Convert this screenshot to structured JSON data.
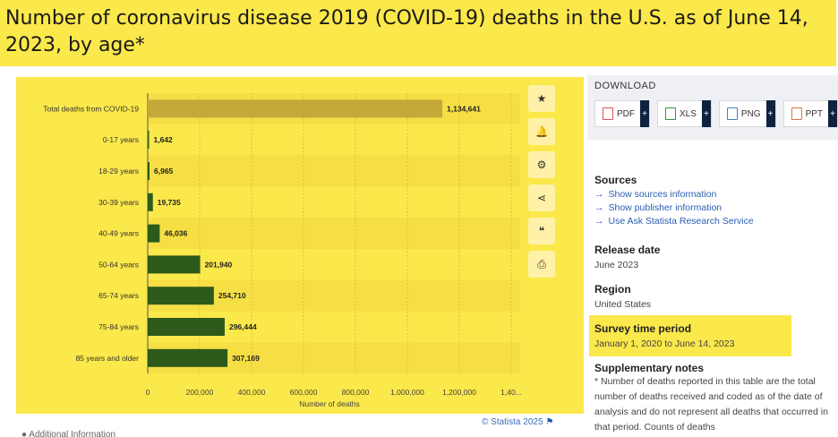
{
  "title": "Number of coronavirus disease 2019 (COVID-19) deaths in the U.S. as of June 14, 2023, by age*",
  "chart_data": {
    "type": "bar",
    "orientation": "horizontal",
    "categories": [
      "Total deaths from COVID-19",
      "0-17 years",
      "18-29 years",
      "30-39 years",
      "40-49 years",
      "50-64 years",
      "65-74 years",
      "75-84 years",
      "85 years and older"
    ],
    "values": [
      1134641,
      1642,
      6965,
      19735,
      46036,
      201940,
      254710,
      296444,
      307169
    ],
    "value_labels": [
      "1,134,641",
      "1,642",
      "6,965",
      "19,735",
      "46,036",
      "201,940",
      "254,710",
      "296,444",
      "307,169"
    ],
    "xlabel": "Number of deaths",
    "xlim": [
      0,
      1400000
    ],
    "x_ticks": [
      "0",
      "200,000",
      "400,000",
      "600,000",
      "800,000",
      "1,000,000",
      "1,200,000",
      "1,40..."
    ],
    "colors": {
      "total": "#c4a83a",
      "bars": "#2d5a1b",
      "panel": "#fbe84a",
      "band": "#f5df44"
    },
    "grid": true
  },
  "toolbar": {
    "icons": [
      "star-icon",
      "bell-icon",
      "gear-icon",
      "share-icon",
      "quote-icon",
      "print-icon"
    ],
    "glyphs": [
      "★",
      "🔔",
      "⚙",
      "⋖",
      "❝",
      "⎙"
    ]
  },
  "credit": "© Statista 2025",
  "extra_info": "Additional Information",
  "download": {
    "title": "DOWNLOAD",
    "buttons": [
      {
        "label": "PDF",
        "color": "#d9534f"
      },
      {
        "label": "XLS",
        "color": "#3c8c3c"
      },
      {
        "label": "PNG",
        "color": "#4a7bbf"
      },
      {
        "label": "PPT",
        "color": "#e0713a"
      }
    ],
    "plus": "+"
  },
  "sources": {
    "title": "Sources",
    "links": [
      "Show sources information",
      "Show publisher information",
      "Use Ask Statista Research Service"
    ]
  },
  "release": {
    "title": "Release date",
    "value": "June 2023"
  },
  "region": {
    "title": "Region",
    "value": "United States"
  },
  "survey": {
    "title": "Survey time period",
    "value": "January 1, 2020 to June 14, 2023"
  },
  "notes": {
    "title": "Supplementary notes",
    "text": "* Number of deaths reported in this table are the total number of deaths received and coded as of the date of analysis and do not represent all deaths that occurred in that period. Counts of deaths"
  }
}
